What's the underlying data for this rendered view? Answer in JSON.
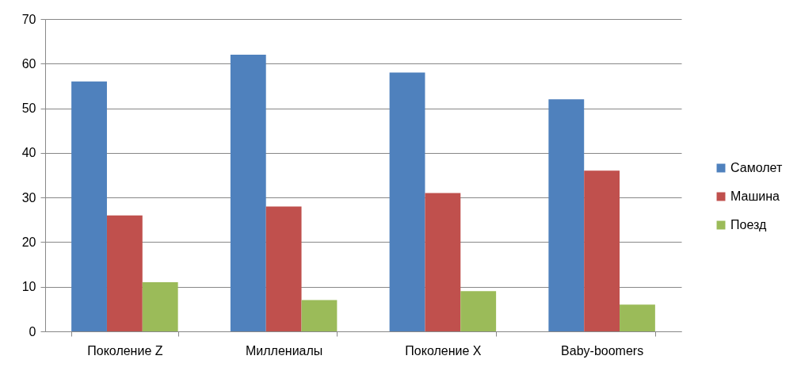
{
  "chart_data": {
    "type": "bar",
    "categories": [
      "Поколение Z",
      "Миллениалы",
      "Поколение X",
      "Baby-boomers"
    ],
    "series": [
      {
        "name": "Самолет",
        "color": "#4f81bd",
        "values": [
          56,
          62,
          58,
          52
        ]
      },
      {
        "name": "Машина",
        "color": "#c0504d",
        "values": [
          26,
          28,
          31,
          36
        ]
      },
      {
        "name": "Поезд",
        "color": "#9bbb59",
        "values": [
          11,
          7,
          9,
          6
        ]
      }
    ],
    "ylim": [
      0,
      70
    ],
    "yticks": [
      0,
      10,
      20,
      30,
      40,
      50,
      60,
      70
    ],
    "grid": "y",
    "legend": "right"
  }
}
